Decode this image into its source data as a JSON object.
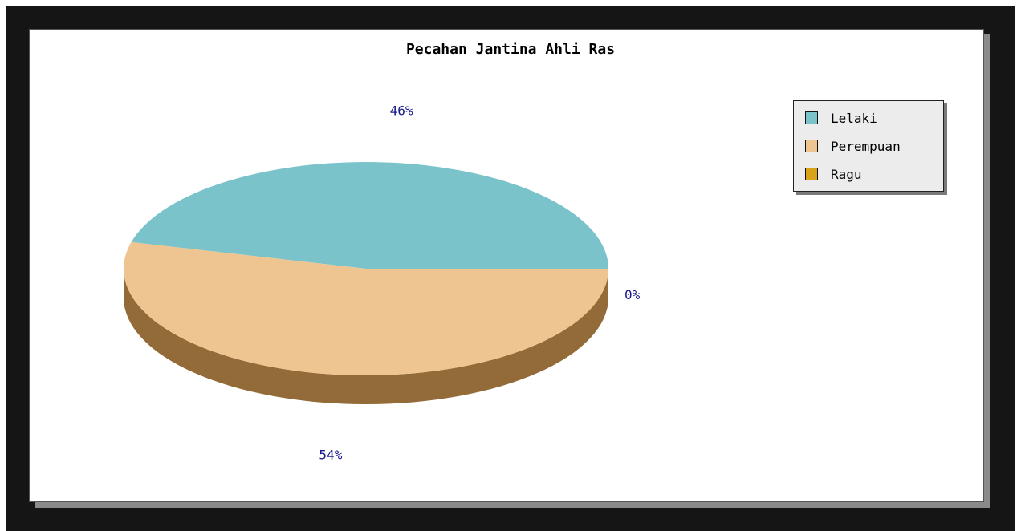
{
  "chart_data": {
    "type": "pie",
    "title": "Pecahan Jantina Ahli Ras",
    "categories": [
      "Lelaki",
      "Perempuan",
      "Ragu"
    ],
    "values": [
      46,
      54,
      0
    ],
    "data_labels": [
      "46%",
      "54%",
      "0%"
    ],
    "colors": [
      "#7ac3cb",
      "#eec591",
      "#d9a21b"
    ],
    "side_colors": [
      "#4f8a90",
      "#936b38",
      "#9a7212"
    ],
    "legend_position": "top-right",
    "style": "3d"
  }
}
